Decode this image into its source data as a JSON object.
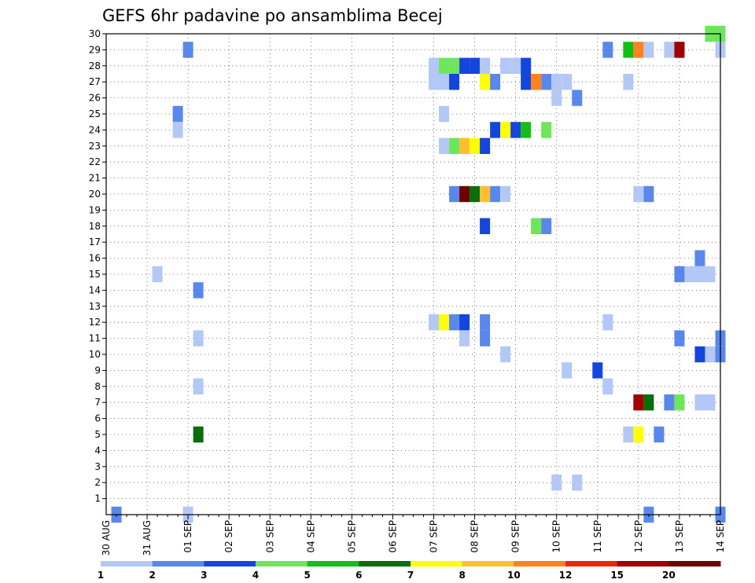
{
  "chart_data": {
    "type": "heatmap",
    "title": "GEFS 6hr padavine po ansamblima Becej",
    "xlabel": "",
    "ylabel": "",
    "x_tick_labels": [
      "30 AUG",
      "31 AUG",
      "01 SEP",
      "02 SEP",
      "03 SEP",
      "04 SEP",
      "05 SEP",
      "06 SEP",
      "07 SEP",
      "08 SEP",
      "09 SEP",
      "10 SEP",
      "11 SEP",
      "12 SEP",
      "13 SEP",
      "14 SEP"
    ],
    "y_tick_labels": [
      "1",
      "2",
      "3",
      "4",
      "5",
      "6",
      "7",
      "8",
      "9",
      "10",
      "11",
      "12",
      "13",
      "14",
      "15",
      "16",
      "17",
      "18",
      "19",
      "20",
      "21",
      "22",
      "23",
      "24",
      "25",
      "26",
      "27",
      "28",
      "29",
      "30"
    ],
    "grid": true,
    "legend": {
      "position": "bottom",
      "labels": [
        "1",
        "2",
        "3",
        "4",
        "5",
        "6",
        "7",
        "8",
        "10",
        "12",
        "15",
        "20"
      ],
      "colors": [
        "#b4c8f5",
        "#5a87eb",
        "#1446dc",
        "#6ee65a",
        "#14be14",
        "#0a6e0a",
        "#ffff00",
        "#ffbe32",
        "#ff821e",
        "#e6280a",
        "#a00000",
        "#6e0000"
      ]
    },
    "colors": {
      "c1": "#b4c8f5",
      "c2": "#5a87eb",
      "c3": "#1446dc",
      "c4": "#6ee65a",
      "c5": "#14be14",
      "c6": "#0a6e0a",
      "c7": "#ffff00",
      "c8": "#ffbe32",
      "c10": "#ff821e",
      "c12": "#e6280a",
      "c15": "#a00000",
      "c20": "#6e0000"
    },
    "cells_note_units": "t = 6-hour step index from 30 AUG 00Z; m = ensemble member; v = precipitation class (lower bound, mm)",
    "cells": [
      {
        "t": 1,
        "m": 0,
        "v": 2
      },
      {
        "t": 8,
        "m": 0,
        "v": 1
      },
      {
        "t": 53,
        "m": 0,
        "v": 2
      },
      {
        "t": 60,
        "m": 0,
        "v": 2
      },
      {
        "t": 59,
        "m": 30,
        "v": 4
      },
      {
        "t": 60,
        "m": 30,
        "v": 4
      },
      {
        "t": 8,
        "m": 29,
        "v": 2
      },
      {
        "t": 49,
        "m": 29,
        "v": 2
      },
      {
        "t": 51,
        "m": 29,
        "v": 5
      },
      {
        "t": 52,
        "m": 29,
        "v": 10
      },
      {
        "t": 53,
        "m": 29,
        "v": 1
      },
      {
        "t": 55,
        "m": 29,
        "v": 1
      },
      {
        "t": 56,
        "m": 29,
        "v": 15
      },
      {
        "t": 60,
        "m": 29,
        "v": 1
      },
      {
        "t": 32,
        "m": 28,
        "v": 1
      },
      {
        "t": 33,
        "m": 28,
        "v": 4
      },
      {
        "t": 34,
        "m": 28,
        "v": 4
      },
      {
        "t": 35,
        "m": 28,
        "v": 3
      },
      {
        "t": 36,
        "m": 28,
        "v": 3
      },
      {
        "t": 37,
        "m": 28,
        "v": 1
      },
      {
        "t": 39,
        "m": 28,
        "v": 1
      },
      {
        "t": 40,
        "m": 28,
        "v": 1
      },
      {
        "t": 41,
        "m": 28,
        "v": 3
      },
      {
        "t": 32,
        "m": 27,
        "v": 1
      },
      {
        "t": 33,
        "m": 27,
        "v": 1
      },
      {
        "t": 34,
        "m": 27,
        "v": 3
      },
      {
        "t": 37,
        "m": 27,
        "v": 7
      },
      {
        "t": 38,
        "m": 27,
        "v": 2
      },
      {
        "t": 41,
        "m": 27,
        "v": 3
      },
      {
        "t": 42,
        "m": 27,
        "v": 10
      },
      {
        "t": 43,
        "m": 27,
        "v": 2
      },
      {
        "t": 44,
        "m": 27,
        "v": 1
      },
      {
        "t": 45,
        "m": 27,
        "v": 1
      },
      {
        "t": 51,
        "m": 27,
        "v": 1
      },
      {
        "t": 44,
        "m": 26,
        "v": 1
      },
      {
        "t": 46,
        "m": 26,
        "v": 2
      },
      {
        "t": 7,
        "m": 25,
        "v": 2
      },
      {
        "t": 33,
        "m": 25,
        "v": 1
      },
      {
        "t": 7,
        "m": 24,
        "v": 1
      },
      {
        "t": 38,
        "m": 24,
        "v": 3
      },
      {
        "t": 39,
        "m": 24,
        "v": 7
      },
      {
        "t": 40,
        "m": 24,
        "v": 3
      },
      {
        "t": 41,
        "m": 24,
        "v": 5
      },
      {
        "t": 43,
        "m": 24,
        "v": 4
      },
      {
        "t": 33,
        "m": 23,
        "v": 1
      },
      {
        "t": 34,
        "m": 23,
        "v": 4
      },
      {
        "t": 35,
        "m": 23,
        "v": 8
      },
      {
        "t": 36,
        "m": 23,
        "v": 7
      },
      {
        "t": 37,
        "m": 23,
        "v": 3
      },
      {
        "t": 34,
        "m": 20,
        "v": 2
      },
      {
        "t": 35,
        "m": 20,
        "v": 20
      },
      {
        "t": 36,
        "m": 20,
        "v": 6
      },
      {
        "t": 37,
        "m": 20,
        "v": 8
      },
      {
        "t": 38,
        "m": 20,
        "v": 2
      },
      {
        "t": 39,
        "m": 20,
        "v": 1
      },
      {
        "t": 52,
        "m": 20,
        "v": 1
      },
      {
        "t": 53,
        "m": 20,
        "v": 2
      },
      {
        "t": 37,
        "m": 18,
        "v": 3
      },
      {
        "t": 42,
        "m": 18,
        "v": 4
      },
      {
        "t": 43,
        "m": 18,
        "v": 2
      },
      {
        "t": 58,
        "m": 16,
        "v": 2
      },
      {
        "t": 5,
        "m": 15,
        "v": 1
      },
      {
        "t": 56,
        "m": 15,
        "v": 2
      },
      {
        "t": 57,
        "m": 15,
        "v": 1
      },
      {
        "t": 58,
        "m": 15,
        "v": 1
      },
      {
        "t": 59,
        "m": 15,
        "v": 1
      },
      {
        "t": 9,
        "m": 14,
        "v": 2
      },
      {
        "t": 32,
        "m": 12,
        "v": 1
      },
      {
        "t": 33,
        "m": 12,
        "v": 7
      },
      {
        "t": 34,
        "m": 12,
        "v": 2
      },
      {
        "t": 35,
        "m": 12,
        "v": 3
      },
      {
        "t": 37,
        "m": 12,
        "v": 2
      },
      {
        "t": 49,
        "m": 12,
        "v": 1
      },
      {
        "t": 9,
        "m": 11,
        "v": 1
      },
      {
        "t": 35,
        "m": 11,
        "v": 1
      },
      {
        "t": 37,
        "m": 11,
        "v": 2
      },
      {
        "t": 56,
        "m": 11,
        "v": 2
      },
      {
        "t": 60,
        "m": 11,
        "v": 2
      },
      {
        "t": 39,
        "m": 10,
        "v": 1
      },
      {
        "t": 58,
        "m": 10,
        "v": 3
      },
      {
        "t": 59,
        "m": 10,
        "v": 1
      },
      {
        "t": 60,
        "m": 10,
        "v": 2
      },
      {
        "t": 45,
        "m": 9,
        "v": 1
      },
      {
        "t": 48,
        "m": 9,
        "v": 3
      },
      {
        "t": 9,
        "m": 8,
        "v": 1
      },
      {
        "t": 49,
        "m": 8,
        "v": 1
      },
      {
        "t": 52,
        "m": 7,
        "v": 15
      },
      {
        "t": 53,
        "m": 7,
        "v": 6
      },
      {
        "t": 55,
        "m": 7,
        "v": 2
      },
      {
        "t": 56,
        "m": 7,
        "v": 4
      },
      {
        "t": 58,
        "m": 7,
        "v": 1
      },
      {
        "t": 59,
        "m": 7,
        "v": 1
      },
      {
        "t": 9,
        "m": 5,
        "v": 6
      },
      {
        "t": 51,
        "m": 5,
        "v": 1
      },
      {
        "t": 52,
        "m": 5,
        "v": 7
      },
      {
        "t": 54,
        "m": 5,
        "v": 2
      },
      {
        "t": 44,
        "m": 2,
        "v": 1
      },
      {
        "t": 46,
        "m": 2,
        "v": 1
      }
    ]
  }
}
